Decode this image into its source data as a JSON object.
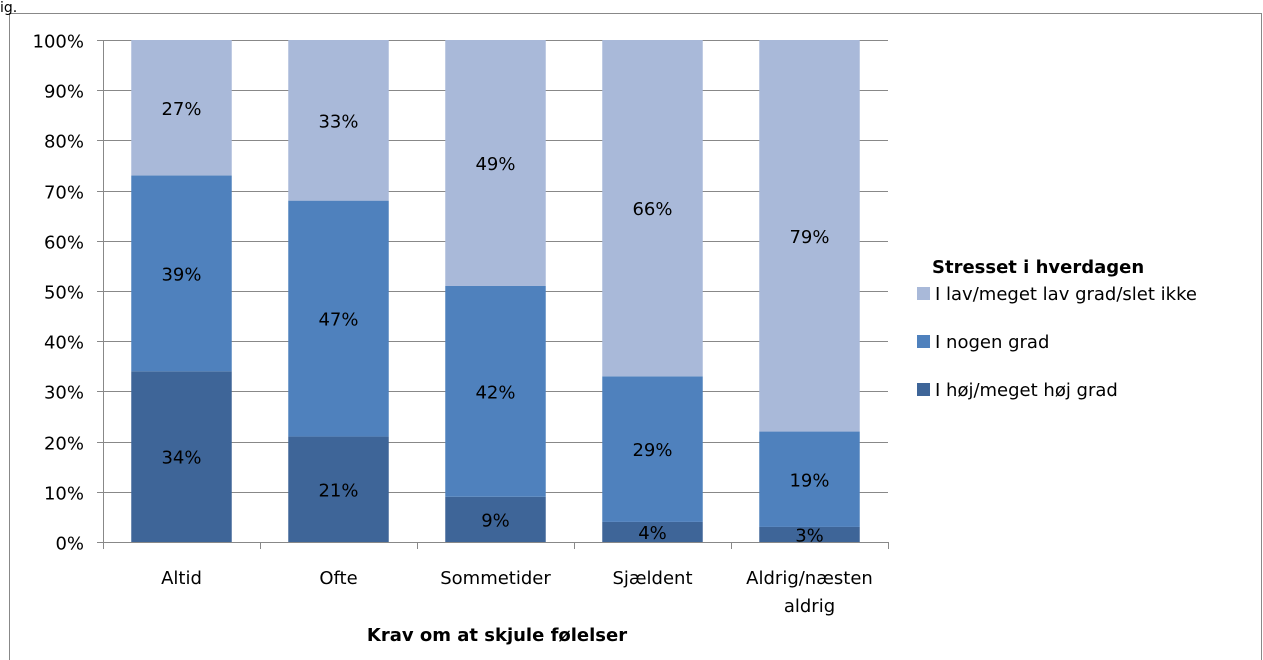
{
  "corner_text": "ig.",
  "chart_data": {
    "type": "bar",
    "stacked": true,
    "categories": [
      "Altid",
      "Ofte",
      "Sommetider",
      "Sjældent",
      "Aldrig/næsten aldrig"
    ],
    "series": [
      {
        "name": "I høj/meget høj grad",
        "values": [
          34,
          21,
          9,
          4,
          3
        ],
        "labels": [
          "34%",
          "21%",
          "9%",
          "4%",
          "3%"
        ],
        "color": "#3E6598"
      },
      {
        "name": "I nogen grad",
        "values": [
          39,
          47,
          42,
          29,
          19
        ],
        "labels": [
          "39%",
          "47%",
          "42%",
          "29%",
          "19%"
        ],
        "color": "#4F81BD"
      },
      {
        "name": "I lav/meget lav grad/slet ikke",
        "values": [
          27,
          33,
          49,
          66,
          79
        ],
        "labels": [
          "27%",
          "33%",
          "49%",
          "66%",
          "79%"
        ],
        "color": "#A9B9D9"
      }
    ],
    "y_ticks": [
      "0%",
      "10%",
      "20%",
      "30%",
      "40%",
      "50%",
      "60%",
      "70%",
      "80%",
      "90%",
      "100%"
    ],
    "ylim": [
      0,
      100
    ],
    "xlabel": "Krav om at skjule følelser",
    "ylabel": "",
    "legend": {
      "title": "Stresset i hverdagen",
      "placement": "right"
    },
    "grid": true
  }
}
